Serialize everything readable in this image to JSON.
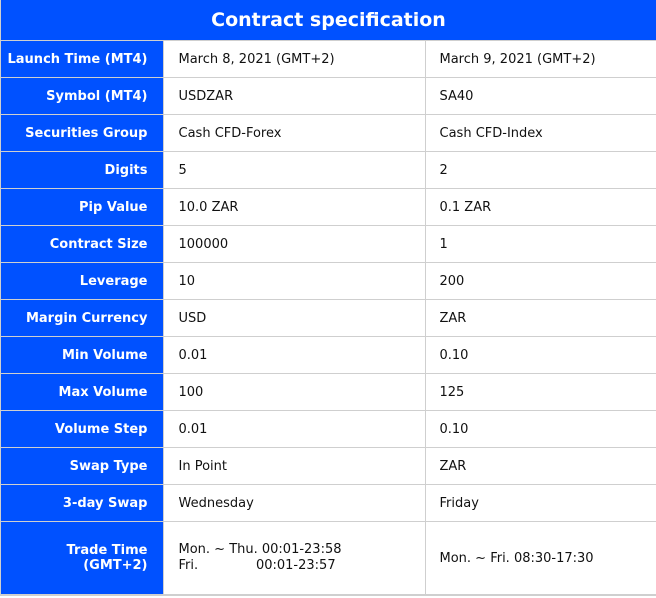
{
  "title": "Contract specification",
  "rows": [
    {
      "label": "Launch Time (MT4)",
      "col1": "March 8, 2021 (GMT+2)",
      "col2": "March 9, 2021 (GMT+2)"
    },
    {
      "label": "Symbol (MT4)",
      "col1": "USDZAR",
      "col2": "SA40"
    },
    {
      "label": "Securities Group",
      "col1": "Cash  CFD-Forex",
      "col2": "Cash CFD-Index"
    },
    {
      "label": "Digits",
      "col1": "5",
      "col2": "2"
    },
    {
      "label": "Pip Value",
      "col1": "10.0 ZAR",
      "col2": "0.1 ZAR"
    },
    {
      "label": "Contract Size",
      "col1": "100000",
      "col2": "1"
    },
    {
      "label": "Leverage",
      "col1": "10",
      "col2": "200"
    },
    {
      "label": "Margin Currency",
      "col1": "USD",
      "col2": "ZAR"
    },
    {
      "label": "Min Volume",
      "col1": "0.01",
      "col2": "0.10"
    },
    {
      "label": "Max Volume",
      "col1": "100",
      "col2": "125"
    },
    {
      "label": "Volume Step",
      "col1": "0.01",
      "col2": "0.10"
    },
    {
      "label": "Swap Type",
      "col1": "In Point",
      "col2": "ZAR"
    },
    {
      "label": "3-day Swap",
      "col1": "Wednesday",
      "col2": "Friday"
    }
  ],
  "trade_time": {
    "label": "Trade Time (GMT+2)",
    "col1_line1": "Mon. ~ Thu. 00:01-23:58",
    "col1_line2": "Fri.              00:01-23:57",
    "col2": "Mon. ~ Fri. 08:30-17:30"
  },
  "colors": {
    "header_blue": "#0051ff",
    "border": "#cfcfcf"
  }
}
